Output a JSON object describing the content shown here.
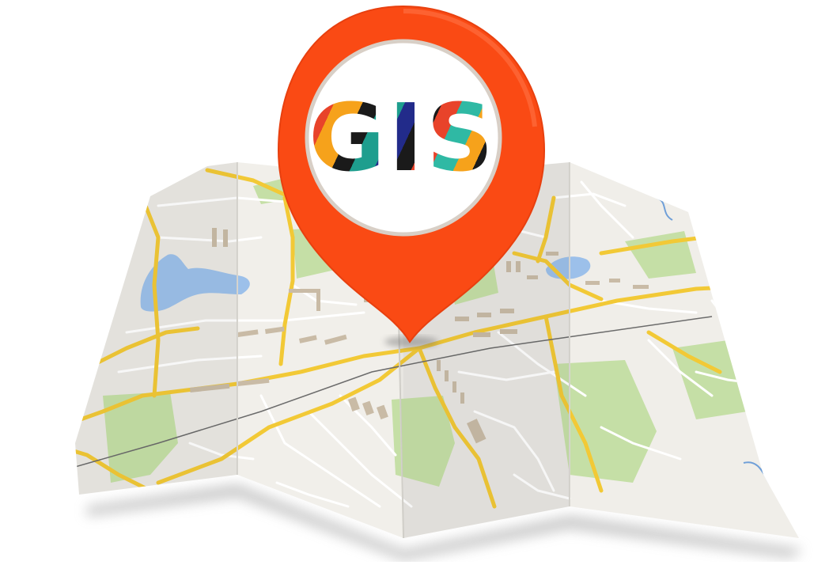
{
  "badge": {
    "text": "GIS"
  },
  "colors": {
    "pin": "#fa4a14",
    "pin_inner": "#ffffff",
    "map_base": "#efede8",
    "map_fold_shade": "#e2e0da",
    "road_major": "#f2c936",
    "road_minor": "#ffffff",
    "park": "#c5dfa6",
    "water": "#9cc0ea",
    "building": "#c9bba6",
    "shadow": "#bdbdbd"
  },
  "icons": {
    "pin": "map-pin-icon",
    "map": "folded-map-icon"
  }
}
